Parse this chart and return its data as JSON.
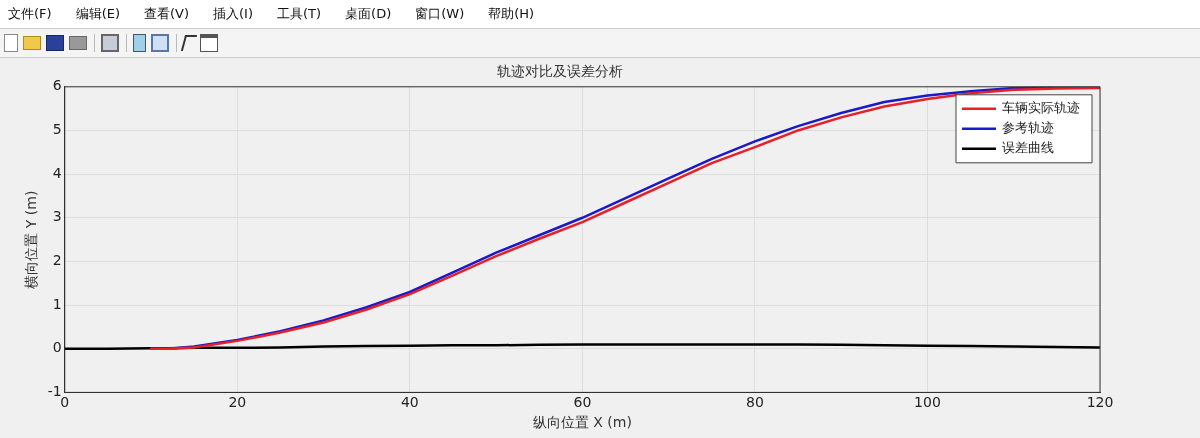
{
  "chart_data": {
    "type": "line",
    "title": "轨迹对比及误差分析",
    "xlabel": "纵向位置 X (m)",
    "ylabel": "横向位置 Y (m)",
    "x": [
      0,
      5,
      10,
      12,
      15,
      20,
      25,
      30,
      35,
      40,
      45,
      50,
      55,
      60,
      65,
      70,
      75,
      80,
      85,
      90,
      95,
      100,
      105,
      110,
      115,
      120
    ],
    "series": [
      {
        "name": "车辆实际轨迹",
        "color": "#e8202a",
        "values": [
          null,
          null,
          0,
          0,
          0.03,
          0.18,
          0.37,
          0.6,
          0.9,
          1.25,
          1.68,
          2.12,
          2.52,
          2.9,
          3.35,
          3.8,
          4.25,
          4.62,
          5.0,
          5.3,
          5.55,
          5.72,
          5.85,
          5.93,
          5.96,
          5.97
        ]
      },
      {
        "name": "参考轨迹",
        "color": "#1a1ac8",
        "values": [
          null,
          null,
          0,
          0,
          0.05,
          0.2,
          0.4,
          0.65,
          0.95,
          1.3,
          1.75,
          2.2,
          2.6,
          3.0,
          3.45,
          3.9,
          4.35,
          4.75,
          5.1,
          5.4,
          5.65,
          5.8,
          5.9,
          5.97,
          6.0,
          6.0
        ]
      },
      {
        "name": "误差曲线",
        "color": "#000000",
        "values": [
          0,
          0,
          0.01,
          0.01,
          0.02,
          0.02,
          0.03,
          0.05,
          0.06,
          0.07,
          0.08,
          0.08,
          0.09,
          0.1,
          0.1,
          0.1,
          0.1,
          0.1,
          0.1,
          0.09,
          0.08,
          0.07,
          0.06,
          0.05,
          0.04,
          0.03
        ]
      }
    ],
    "xlim": [
      0,
      120
    ],
    "xticks": [
      0,
      20,
      40,
      60,
      80,
      100,
      120
    ],
    "ylim": [
      -1,
      6
    ],
    "yticks": [
      -1,
      0,
      1,
      2,
      3,
      4,
      5,
      6
    ],
    "grid": true,
    "legend": "top right",
    "marker": "none",
    "line_style": "solid",
    "annotations": [
      "文件(F)",
      "编辑(E)",
      "查看(V)",
      "插入(I)",
      "工具(T)",
      "桌面(D)",
      "窗口(W)",
      "帮助(H)"
    ]
  }
}
